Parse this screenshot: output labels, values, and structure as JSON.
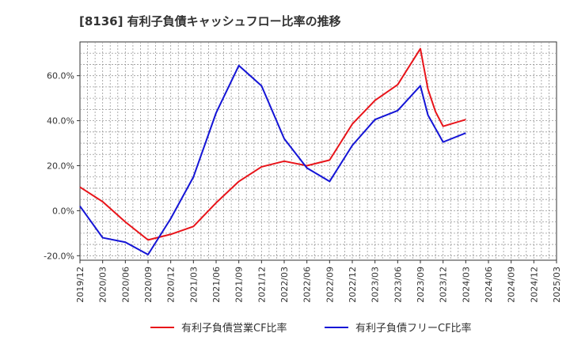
{
  "chart_data": {
    "type": "line",
    "title": "[8136]  有利子負債キャッシュフロー比率の推移",
    "xlabel": "",
    "ylabel": "",
    "ylim": [
      -22,
      75
    ],
    "yticks": [
      -20,
      0,
      20,
      40,
      60
    ],
    "ytick_labels": [
      "-20.0%",
      "0.0%",
      "20.0%",
      "40.0%",
      "60.0%"
    ],
    "x_range": [
      "2019-12",
      "2025-03"
    ],
    "xtick_labels": [
      "2019/12",
      "2020/03",
      "2020/06",
      "2020/09",
      "2020/12",
      "2021/03",
      "2021/06",
      "2021/09",
      "2021/12",
      "2022/03",
      "2022/06",
      "2022/09",
      "2022/12",
      "2023/03",
      "2023/06",
      "2023/09",
      "2023/12",
      "2024/03",
      "2024/06",
      "2024/09",
      "2024/12",
      "2025/03"
    ],
    "grid": true,
    "legend_position": "bottom",
    "x": [
      "2019-12",
      "2020-03",
      "2020-06",
      "2020-09",
      "2020-12",
      "2021-03",
      "2021-06",
      "2021-09",
      "2021-12",
      "2022-03",
      "2022-06",
      "2022-09",
      "2022-12",
      "2023-03",
      "2023-06",
      "2023-09",
      "2023-12",
      "2024-03"
    ],
    "series": [
      {
        "name": "有利子負債営業CF比率",
        "color": "#e8141a",
        "values": [
          10.5,
          4.0,
          -5.0,
          -13.0,
          -10.5,
          -7.0,
          3.5,
          13.0,
          19.5,
          22.0,
          20.0,
          22.5,
          38.5,
          49.0,
          56.0,
          72.0,
          37.5,
          40.5
        ],
        "extra": [
          {
            "x": "2023-10",
            "y": 54.0
          },
          {
            "x": "2023-11",
            "y": 44.0
          }
        ]
      },
      {
        "name": "有利子負債フリーCF比率",
        "color": "#1414d6",
        "values": [
          2.0,
          -12.0,
          -14.0,
          -19.5,
          -3.5,
          15.0,
          43.5,
          64.5,
          55.5,
          32.0,
          19.0,
          13.0,
          29.0,
          40.5,
          44.5,
          55.5,
          30.5,
          34.5
        ],
        "extra": [
          {
            "x": "2023-10",
            "y": 42.5
          }
        ]
      }
    ]
  }
}
